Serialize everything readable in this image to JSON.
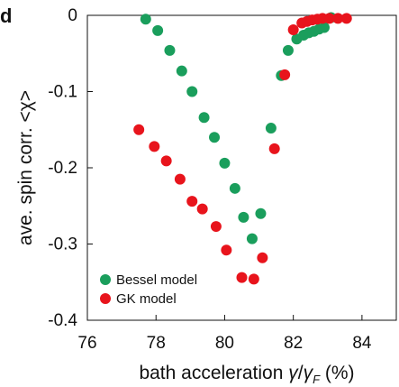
{
  "panel_label": "d",
  "chart_data": {
    "type": "scatter",
    "xlabel_prefix": "bath acceleration ",
    "xlabel_gamma": "γ",
    "xlabel_slash": "/",
    "xlabel_gamma_f": "γ",
    "xlabel_sub": "F",
    "xlabel_unit": " (%)",
    "ylabel": "ave. spin corr. <χ>",
    "xlim": [
      76,
      85
    ],
    "ylim": [
      -0.4,
      0
    ],
    "xticks": [
      76,
      78,
      80,
      82,
      84
    ],
    "xtick_labels": [
      "76",
      "78",
      "80",
      "82",
      "84"
    ],
    "yticks": [
      0,
      -0.1,
      -0.2,
      -0.3,
      -0.4
    ],
    "ytick_labels": [
      "0",
      "-0.1",
      "-0.2",
      "-0.3",
      "-0.4"
    ],
    "grid": false,
    "legend_position": "bottom-left",
    "series": [
      {
        "name": "Bessel model",
        "color": "#1a9e5c",
        "points": [
          [
            77.7,
            -0.005
          ],
          [
            78.05,
            -0.02
          ],
          [
            78.4,
            -0.046
          ],
          [
            78.75,
            -0.073
          ],
          [
            79.05,
            -0.1
          ],
          [
            79.4,
            -0.134
          ],
          [
            79.7,
            -0.16
          ],
          [
            80.0,
            -0.194
          ],
          [
            80.3,
            -0.227
          ],
          [
            80.55,
            -0.265
          ],
          [
            80.8,
            -0.293
          ],
          [
            81.05,
            -0.26
          ],
          [
            81.35,
            -0.148
          ],
          [
            81.65,
            -0.079
          ],
          [
            81.85,
            -0.046
          ],
          [
            82.1,
            -0.031
          ],
          [
            82.3,
            -0.026
          ],
          [
            82.45,
            -0.023
          ],
          [
            82.6,
            -0.021
          ],
          [
            82.75,
            -0.018
          ],
          [
            82.9,
            -0.016
          ],
          [
            83.1,
            -0.003
          ]
        ]
      },
      {
        "name": "GK model",
        "color": "#e8141c",
        "points": [
          [
            77.5,
            -0.15
          ],
          [
            77.95,
            -0.172
          ],
          [
            78.3,
            -0.191
          ],
          [
            78.7,
            -0.215
          ],
          [
            79.05,
            -0.244
          ],
          [
            79.35,
            -0.254
          ],
          [
            79.75,
            -0.277
          ],
          [
            80.05,
            -0.308
          ],
          [
            80.5,
            -0.344
          ],
          [
            80.85,
            -0.346
          ],
          [
            81.1,
            -0.318
          ],
          [
            81.45,
            -0.175
          ],
          [
            81.75,
            -0.078
          ],
          [
            82.0,
            -0.019
          ],
          [
            82.25,
            -0.01
          ],
          [
            82.4,
            -0.008
          ],
          [
            82.55,
            -0.006
          ],
          [
            82.7,
            -0.005
          ],
          [
            82.85,
            -0.004
          ],
          [
            83.05,
            -0.004
          ],
          [
            83.3,
            -0.004
          ],
          [
            83.55,
            -0.004
          ]
        ]
      }
    ]
  }
}
